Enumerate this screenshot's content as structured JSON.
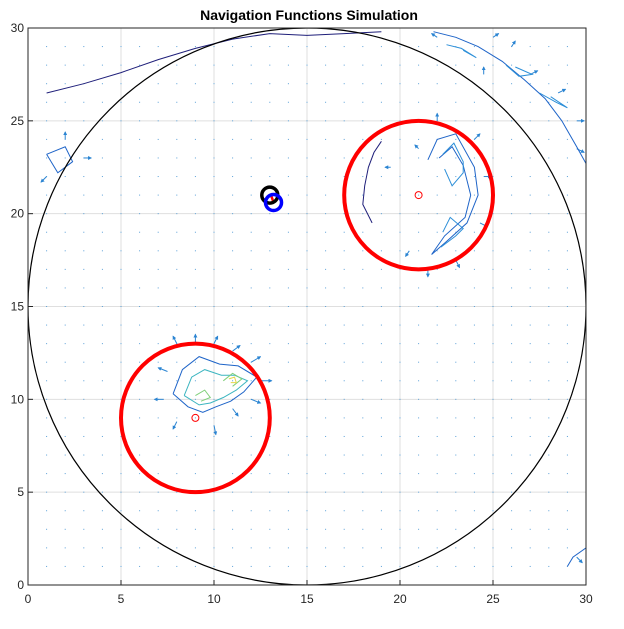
{
  "chart_data": {
    "type": "line",
    "title": "Navigation Functions Simulation",
    "xlabel": "",
    "ylabel": "",
    "xlim": [
      0,
      30
    ],
    "ylim": [
      0,
      30
    ],
    "xticks": [
      0,
      5,
      10,
      15,
      20,
      25,
      30
    ],
    "yticks": [
      0,
      5,
      10,
      15,
      20,
      25,
      30
    ],
    "grid": true,
    "workspace_boundary": {
      "center": [
        15,
        15
      ],
      "radius": 15,
      "color": "#000000"
    },
    "obstacles": [
      {
        "center": [
          21,
          21
        ],
        "radius": 4,
        "color": "#ff0000"
      },
      {
        "center": [
          9,
          9
        ],
        "radius": 4,
        "color": "#ff0000"
      }
    ],
    "obstacle_centers": [
      [
        21,
        21
      ],
      [
        9,
        9
      ]
    ],
    "robot_markers": [
      {
        "name": "start",
        "position": [
          13,
          21
        ],
        "color": "#000000"
      },
      {
        "name": "current",
        "position": [
          13.2,
          20.6
        ],
        "color": "#0000ff"
      }
    ],
    "trajectory": {
      "points": [
        [
          13.0,
          21.0
        ],
        [
          13.1,
          20.9
        ],
        [
          13.2,
          20.6
        ]
      ],
      "color": "#ff0000"
    },
    "contours": [
      {
        "level": 0.1,
        "color": "#1f1f7a",
        "points": [
          [
            1,
            26.5
          ],
          [
            3,
            27
          ],
          [
            5,
            27.6
          ],
          [
            7,
            28.3
          ],
          [
            9,
            28.9
          ],
          [
            11,
            29.4
          ],
          [
            13,
            29.7
          ],
          [
            15,
            29.6
          ],
          [
            17,
            29.7
          ],
          [
            19,
            29.8
          ]
        ]
      },
      {
        "level": 0.1,
        "color": "#1f1f7a",
        "points": [
          [
            18.5,
            19.5
          ],
          [
            18,
            20.5
          ],
          [
            18.1,
            21.5
          ],
          [
            18.3,
            22.5
          ],
          [
            18.6,
            23.3
          ],
          [
            19,
            23.9
          ]
        ]
      },
      {
        "level": 0.5,
        "color": "#1e64c8",
        "points": [
          [
            21.5,
            22.9
          ],
          [
            22,
            24
          ],
          [
            23,
            24.3
          ],
          [
            24,
            22.5
          ],
          [
            24.2,
            21
          ],
          [
            23.6,
            19.5
          ],
          [
            22.5,
            18.5
          ],
          [
            21.7,
            17.8
          ],
          [
            22.4,
            18.8
          ],
          [
            23.5,
            19.8
          ],
          [
            23.8,
            21
          ],
          [
            23.4,
            22.6
          ],
          [
            22.8,
            23.6
          ],
          [
            22.1,
            23
          ]
        ]
      },
      {
        "level": 1.0,
        "color": "#2c8fd8",
        "points": [
          [
            22.3,
            23.2
          ],
          [
            22.9,
            23.8
          ],
          [
            23.4,
            22.8
          ],
          [
            23.4,
            22.2
          ],
          [
            22.8,
            21.5
          ],
          [
            22.4,
            22.4
          ]
        ]
      },
      {
        "level": 1.0,
        "color": "#2c8fd8",
        "points": [
          [
            22.2,
            18.2
          ],
          [
            23,
            18.8
          ],
          [
            23.4,
            19.2
          ],
          [
            22.7,
            19.8
          ],
          [
            22.3,
            19
          ]
        ]
      },
      {
        "level": 0.5,
        "color": "#1e64c8",
        "points": [
          [
            7.8,
            10.3
          ],
          [
            8.3,
            11.6
          ],
          [
            9.2,
            12.3
          ],
          [
            10.3,
            11.9
          ],
          [
            11.3,
            11.8
          ],
          [
            12.3,
            11.2
          ],
          [
            11.6,
            10.4
          ],
          [
            10.9,
            9.9
          ],
          [
            10.1,
            9.6
          ],
          [
            9.4,
            9.3
          ],
          [
            8.6,
            9.6
          ],
          [
            7.8,
            10.3
          ]
        ]
      },
      {
        "level": 1.5,
        "color": "#3cb5c0",
        "points": [
          [
            8.4,
            10.2
          ],
          [
            8.8,
            11.2
          ],
          [
            9.5,
            11.6
          ],
          [
            10.4,
            11.3
          ],
          [
            11.1,
            11.3
          ],
          [
            11.8,
            11
          ],
          [
            11.2,
            10.5
          ],
          [
            10.5,
            10.1
          ],
          [
            9.8,
            9.8
          ],
          [
            9.2,
            9.7
          ],
          [
            8.4,
            10.2
          ]
        ]
      },
      {
        "level": 2.5,
        "color": "#7fcf7a",
        "points": [
          [
            10.5,
            11
          ],
          [
            11,
            11.4
          ],
          [
            11.5,
            11.1
          ],
          [
            11,
            10.7
          ]
        ]
      },
      {
        "level": 3.5,
        "color": "#e6d64a",
        "points": [
          [
            10.8,
            11.1
          ],
          [
            11.1,
            11.2
          ],
          [
            11.2,
            10.9
          ],
          [
            10.9,
            10.9
          ]
        ]
      },
      {
        "level": 2.5,
        "color": "#7fcf7a",
        "points": [
          [
            9,
            10.2
          ],
          [
            9.5,
            10.5
          ],
          [
            9.8,
            10.1
          ],
          [
            9.3,
            9.9
          ]
        ]
      },
      {
        "level": 0.5,
        "color": "#1e64c8",
        "points": [
          [
            21.8,
            29.8
          ],
          [
            23,
            29.5
          ],
          [
            24.2,
            29.0
          ],
          [
            25.5,
            28.2
          ],
          [
            26.7,
            27.2
          ],
          [
            27.8,
            26.2
          ],
          [
            28.7,
            25
          ],
          [
            29.5,
            23.6
          ],
          [
            30,
            22.7
          ]
        ]
      },
      {
        "level": 1.0,
        "color": "#2c8fd8",
        "points": [
          [
            22.5,
            29.1
          ],
          [
            23.3,
            28.9
          ],
          [
            24.1,
            28.4
          ],
          [
            23.4,
            28.8
          ]
        ]
      },
      {
        "level": 1.0,
        "color": "#2c8fd8",
        "points": [
          [
            25.7,
            28.0
          ],
          [
            26.4,
            27.4
          ],
          [
            27.1,
            27.5
          ],
          [
            26.2,
            27.9
          ]
        ]
      },
      {
        "level": 1.0,
        "color": "#2c8fd8",
        "points": [
          [
            27.5,
            26.5
          ],
          [
            28.4,
            26.0
          ],
          [
            29,
            25.7
          ],
          [
            28.1,
            26.3
          ]
        ]
      },
      {
        "level": 0.5,
        "color": "#1e64c8",
        "points": [
          [
            1,
            23.2
          ],
          [
            2,
            23.6
          ],
          [
            2.4,
            22.8
          ],
          [
            1.6,
            22.2
          ],
          [
            1,
            23.2
          ]
        ]
      },
      {
        "level": 0.5,
        "color": "#1e64c8",
        "points": [
          [
            29,
            1
          ],
          [
            29.3,
            1.5
          ],
          [
            30,
            2.0
          ]
        ]
      }
    ],
    "gradient_field": [
      {
        "x": 9,
        "y": 13,
        "dx": 0,
        "dy": 0.5
      },
      {
        "x": 8,
        "y": 13,
        "dx": -0.2,
        "dy": 0.4
      },
      {
        "x": 10,
        "y": 13,
        "dx": 0.2,
        "dy": 0.4
      },
      {
        "x": 11,
        "y": 12.6,
        "dx": 0.4,
        "dy": 0.3
      },
      {
        "x": 12,
        "y": 12,
        "dx": 0.5,
        "dy": 0.3
      },
      {
        "x": 12.5,
        "y": 11,
        "dx": 0.6,
        "dy": 0
      },
      {
        "x": 12,
        "y": 10,
        "dx": 0.5,
        "dy": -0.2
      },
      {
        "x": 11,
        "y": 9.5,
        "dx": 0.3,
        "dy": -0.4
      },
      {
        "x": 10,
        "y": 8.6,
        "dx": 0.1,
        "dy": -0.5
      },
      {
        "x": 8,
        "y": 8.8,
        "dx": -0.2,
        "dy": -0.4
      },
      {
        "x": 7.3,
        "y": 10,
        "dx": -0.5,
        "dy": 0
      },
      {
        "x": 7.5,
        "y": 11.5,
        "dx": -0.5,
        "dy": 0.2
      },
      {
        "x": 19.5,
        "y": 22.5,
        "dx": -0.3,
        "dy": 0
      },
      {
        "x": 22,
        "y": 25,
        "dx": 0,
        "dy": 0.4
      },
      {
        "x": 24,
        "y": 24,
        "dx": 0.3,
        "dy": 0.3
      },
      {
        "x": 24.5,
        "y": 22,
        "dx": 0.4,
        "dy": 0
      },
      {
        "x": 24.3,
        "y": 19.5,
        "dx": 0.4,
        "dy": -0.2
      },
      {
        "x": 23,
        "y": 17.5,
        "dx": 0.2,
        "dy": -0.4
      },
      {
        "x": 21.5,
        "y": 17,
        "dx": 0,
        "dy": -0.4
      },
      {
        "x": 20.5,
        "y": 18,
        "dx": -0.2,
        "dy": -0.3
      },
      {
        "x": 21,
        "y": 23.5,
        "dx": -0.2,
        "dy": 0.2
      },
      {
        "x": 2,
        "y": 24,
        "dx": 0,
        "dy": 0.4
      },
      {
        "x": 3,
        "y": 23,
        "dx": 0.4,
        "dy": 0
      },
      {
        "x": 1,
        "y": 22,
        "dx": -0.3,
        "dy": -0.3
      },
      {
        "x": 26,
        "y": 29,
        "dx": 0.2,
        "dy": 0.3
      },
      {
        "x": 27,
        "y": 27.5,
        "dx": 0.4,
        "dy": 0.2
      },
      {
        "x": 28.5,
        "y": 26.5,
        "dx": 0.4,
        "dy": 0.2
      },
      {
        "x": 29.5,
        "y": 25,
        "dx": 0.4,
        "dy": 0
      },
      {
        "x": 29.5,
        "y": 23.5,
        "dx": 0.4,
        "dy": -0.2
      },
      {
        "x": 24.5,
        "y": 27.5,
        "dx": 0,
        "dy": 0.4
      },
      {
        "x": 25,
        "y": 29.5,
        "dx": 0.3,
        "dy": 0.2
      },
      {
        "x": 22,
        "y": 29.5,
        "dx": -0.3,
        "dy": 0.2
      },
      {
        "x": 29.5,
        "y": 1.5,
        "dx": 0.3,
        "dy": -0.3
      }
    ]
  }
}
